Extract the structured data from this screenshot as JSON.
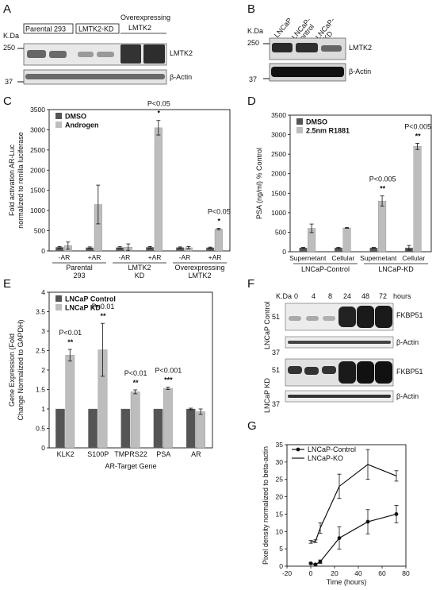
{
  "panels": {
    "A": {
      "label": "A",
      "kda": "K.Da",
      "markers": [
        "250",
        "37"
      ],
      "groups": [
        "Parental 293",
        "LMTK2-KD",
        "Overexpressing LMTK2"
      ],
      "bands": [
        "LMTK2",
        "β-Actin"
      ]
    },
    "B": {
      "label": "B",
      "kda": "K.Da",
      "markers": [
        "250",
        "37"
      ],
      "lanes": [
        "LNCaP",
        "LNCaP-Control",
        "LNCaP-KD"
      ],
      "bands": [
        "LMTK2",
        "β-Actin"
      ]
    },
    "F": {
      "label": "F",
      "kda": "K.Da",
      "hours": [
        "0",
        "4",
        "8",
        "24",
        "48",
        "72"
      ],
      "hours_unit": "hours",
      "rows": [
        "LNCaP Control",
        "LNCaP KD"
      ],
      "bands": [
        "FKBP51",
        "β-Actin"
      ],
      "markers": [
        "51",
        "37"
      ]
    }
  },
  "chart_data": [
    {
      "panel": "C",
      "type": "bar",
      "ylabel": "Fold activation AR-Luc normalized to renilla luciferase",
      "ylim": [
        0,
        3500
      ],
      "yticks": [
        0,
        500,
        1000,
        1500,
        2000,
        2500,
        3000,
        3500
      ],
      "categories": [
        "-AR",
        "+AR",
        "-AR",
        "+AR",
        "-AR",
        "+AR"
      ],
      "groups": [
        "Parental 293",
        "LMTK2 KD",
        "Overexpressing LMTK2"
      ],
      "series": [
        {
          "name": "DMSO",
          "color": "#555555",
          "values": [
            90,
            80,
            85,
            90,
            85,
            80
          ],
          "errors": [
            20,
            20,
            20,
            20,
            15,
            15
          ]
        },
        {
          "name": "Androgen",
          "color": "#bdbdbd",
          "values": [
            130,
            1150,
            95,
            3050,
            80,
            540
          ],
          "errors": [
            90,
            480,
            80,
            180,
            30,
            20
          ]
        }
      ],
      "annotations": [
        {
          "index": 3,
          "text": "P<0.05",
          "stars": "*"
        },
        {
          "index": 5,
          "text": "P<0.05",
          "stars": "*"
        }
      ]
    },
    {
      "panel": "D",
      "type": "bar",
      "ylabel": "PSA (ng/ml) % Control",
      "ylim": [
        0,
        3500
      ],
      "yticks": [
        0,
        500,
        1000,
        1500,
        2000,
        2500,
        3000,
        3500
      ],
      "categories": [
        "Supernetant",
        "Cellular",
        "Supernetant",
        "Cellular"
      ],
      "groups": [
        "LNCaP-Control",
        "LNCaP-KD"
      ],
      "series": [
        {
          "name": "DMSO",
          "color": "#555555",
          "values": [
            100,
            100,
            100,
            100
          ],
          "errors": [
            10,
            10,
            10,
            60
          ]
        },
        {
          "name": "2.5nm R1881",
          "color": "#bdbdbd",
          "values": [
            600,
            610,
            1300,
            2700
          ],
          "errors": [
            110,
            10,
            130,
            80
          ]
        }
      ],
      "annotations": [
        {
          "index": 2,
          "text": "P<0.005",
          "stars": "**"
        },
        {
          "index": 3,
          "text": "P<0.005",
          "stars": "**"
        }
      ]
    },
    {
      "panel": "E",
      "type": "bar",
      "ylabel": "Gene Expression (Fold Change Normalized to GAPDH)",
      "xlabel": "AR-Target Gene",
      "ylim": [
        0,
        4
      ],
      "yticks": [
        0,
        0.5,
        1,
        1.5,
        2,
        2.5,
        3,
        3.5,
        4
      ],
      "categories": [
        "KLK2",
        "S100P",
        "TMPRS22",
        "PSA",
        "AR"
      ],
      "series": [
        {
          "name": "LNCaP Control",
          "color": "#555555",
          "values": [
            1,
            1,
            1,
            1,
            1
          ],
          "errors": [
            0,
            0,
            0,
            0,
            0.02
          ]
        },
        {
          "name": "LNCaP KD",
          "color": "#bdbdbd",
          "values": [
            2.38,
            2.52,
            1.44,
            1.53,
            0.93
          ],
          "errors": [
            0.15,
            0.68,
            0.05,
            0.03,
            0.07
          ]
        }
      ],
      "annotations": [
        {
          "index": 0,
          "text": "P<0.01",
          "stars": "**"
        },
        {
          "index": 1,
          "text": "P<0.01",
          "stars": "**"
        },
        {
          "index": 2,
          "text": "P<0.01",
          "stars": "**"
        },
        {
          "index": 3,
          "text": "P<0.001",
          "stars": "***"
        }
      ]
    },
    {
      "panel": "G",
      "type": "line",
      "xlabel": "Time (hours)",
      "ylabel": "Pixel density normalized to beta-actin",
      "xlim": [
        -20,
        80
      ],
      "ylim": [
        0,
        35
      ],
      "xticks": [
        -20,
        0,
        20,
        40,
        60,
        80
      ],
      "yticks": [
        0,
        5,
        10,
        15,
        20,
        25,
        30,
        35
      ],
      "series": [
        {
          "name": "LNCaP-Control",
          "marker": "circle",
          "x": [
            0,
            4,
            8,
            24,
            48,
            72
          ],
          "y": [
            0.8,
            0.5,
            1.3,
            8.1,
            12.8,
            15.0
          ],
          "err": [
            0.2,
            0.2,
            0.5,
            3.2,
            3.5,
            2.5
          ]
        },
        {
          "name": "LNCaP-KO",
          "marker": "none",
          "x": [
            0,
            4,
            8,
            24,
            48,
            72
          ],
          "y": [
            7.0,
            7.2,
            11.0,
            23.0,
            29.3,
            26.0
          ],
          "err": [
            0.4,
            0.4,
            1.5,
            3.5,
            4.3,
            1.5
          ]
        }
      ]
    }
  ]
}
